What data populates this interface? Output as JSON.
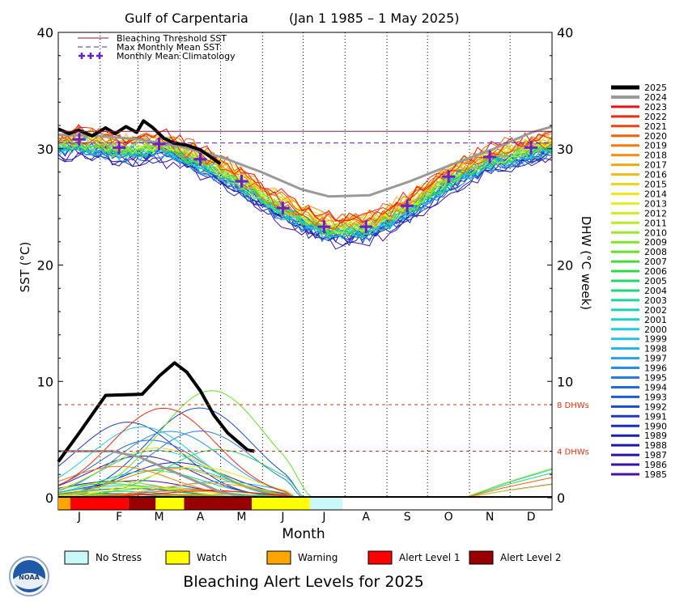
{
  "chart_data": {
    "type": "line",
    "title_region": "Gulf of Carpentaria",
    "title_period": "(Jan 1 1985 – 1 May 2025)",
    "ylabel_left": "SST (°C)",
    "ylabel_right": "DHW (°C week)",
    "xlabel": "Month",
    "ylim": [
      0,
      40
    ],
    "yticks": [
      "0",
      "10",
      "20",
      "30",
      "40"
    ],
    "yticks_right": [
      "0",
      "10",
      "20",
      "30",
      "40"
    ],
    "months": [
      "J",
      "F",
      "M",
      "A",
      "M",
      "J",
      "J",
      "A",
      "S",
      "O",
      "N",
      "D"
    ],
    "bleaching_threshold": 31.5,
    "max_monthly_mean": 30.5,
    "dhw_lines": [
      {
        "value": 8,
        "label": "8 DHWs"
      },
      {
        "value": 4,
        "label": "4 DHWs"
      }
    ],
    "legend_top": [
      {
        "label": "Bleaching Threshold SST",
        "color": "#8b1a3a",
        "style": "solid"
      },
      {
        "label": "Max Monthly Mean SST",
        "color": "#5522cc",
        "style": "dashed"
      },
      {
        "label": "Monthly Mean Climatology",
        "color": "#6a22c8",
        "style": "plus"
      }
    ],
    "climatology": [
      30.8,
      30.1,
      30.4,
      29.1,
      27.2,
      24.9,
      23.3,
      23.3,
      25.1,
      27.6,
      29.3,
      30.1
    ],
    "sst_2025": [
      [
        0,
        31.7
      ],
      [
        8,
        31.3
      ],
      [
        15,
        31.6
      ],
      [
        25,
        31.1
      ],
      [
        35,
        31.8
      ],
      [
        42,
        31.3
      ],
      [
        50,
        31.9
      ],
      [
        58,
        31.4
      ],
      [
        63,
        32.4
      ],
      [
        70,
        31.8
      ],
      [
        78,
        30.9
      ],
      [
        85,
        30.5
      ],
      [
        95,
        30.3
      ],
      [
        105,
        29.9
      ],
      [
        115,
        29.1
      ],
      [
        120,
        28.7
      ]
    ],
    "sst_2024": [
      [
        0,
        31.2
      ],
      [
        30,
        31.1
      ],
      [
        60,
        30.8
      ],
      [
        90,
        30.2
      ],
      [
        120,
        29.3
      ],
      [
        150,
        28.0
      ],
      [
        180,
        26.5
      ],
      [
        200,
        25.9
      ],
      [
        230,
        26.0
      ],
      [
        260,
        27.2
      ],
      [
        290,
        28.6
      ],
      [
        320,
        29.9
      ],
      [
        350,
        31.4
      ],
      [
        365,
        31.9
      ]
    ],
    "dhw_2025": [
      [
        0,
        3.1
      ],
      [
        15,
        5.5
      ],
      [
        35,
        8.8
      ],
      [
        62,
        8.9
      ],
      [
        75,
        10.5
      ],
      [
        86,
        11.6
      ],
      [
        95,
        10.8
      ],
      [
        105,
        9.2
      ],
      [
        115,
        7.1
      ],
      [
        125,
        5.6
      ],
      [
        140,
        4.1
      ],
      [
        145,
        4.0
      ]
    ],
    "dhw_2024": [
      [
        0,
        4.0
      ],
      [
        40,
        4.0
      ],
      [
        60,
        3.5
      ],
      [
        80,
        2.5
      ],
      [
        100,
        1.5
      ],
      [
        120,
        0.5
      ],
      [
        140,
        0.0
      ]
    ],
    "year_legend": [
      {
        "year": "2025",
        "color": "#000000"
      },
      {
        "year": "2024",
        "color": "#999999"
      },
      {
        "year": "2023",
        "color": "#ee1111"
      },
      {
        "year": "2022",
        "color": "#f02a10"
      },
      {
        "year": "2021",
        "color": "#f4420e"
      },
      {
        "year": "2020",
        "color": "#f6600c"
      },
      {
        "year": "2019",
        "color": "#f7780c"
      },
      {
        "year": "2018",
        "color": "#f78f10"
      },
      {
        "year": "2017",
        "color": "#f5a612"
      },
      {
        "year": "2016",
        "color": "#f4bc14"
      },
      {
        "year": "2015",
        "color": "#f2d418"
      },
      {
        "year": "2014",
        "color": "#eee81c"
      },
      {
        "year": "2013",
        "color": "#e2ee20"
      },
      {
        "year": "2012",
        "color": "#cdee24"
      },
      {
        "year": "2011",
        "color": "#b5ec24"
      },
      {
        "year": "2010",
        "color": "#9be824"
      },
      {
        "year": "2009",
        "color": "#80e426"
      },
      {
        "year": "2008",
        "color": "#62e02a"
      },
      {
        "year": "2007",
        "color": "#42dc32"
      },
      {
        "year": "2006",
        "color": "#2cda44"
      },
      {
        "year": "2005",
        "color": "#22d860"
      },
      {
        "year": "2004",
        "color": "#1ed67c"
      },
      {
        "year": "2003",
        "color": "#1ad498"
      },
      {
        "year": "2002",
        "color": "#18d2b2"
      },
      {
        "year": "2001",
        "color": "#18d0cc"
      },
      {
        "year": "2000",
        "color": "#1ccce0"
      },
      {
        "year": "1999",
        "color": "#20c2ec"
      },
      {
        "year": "1998",
        "color": "#22b2f0"
      },
      {
        "year": "1997",
        "color": "#24a0f0"
      },
      {
        "year": "1996",
        "color": "#248eec"
      },
      {
        "year": "1995",
        "color": "#227ce6"
      },
      {
        "year": "1994",
        "color": "#206ade"
      },
      {
        "year": "1993",
        "color": "#1e58d6"
      },
      {
        "year": "1992",
        "color": "#1c48ce"
      },
      {
        "year": "1991",
        "color": "#1a3ac6"
      },
      {
        "year": "1990",
        "color": "#182cbe"
      },
      {
        "year": "1989",
        "color": "#1a20b6"
      },
      {
        "year": "1988",
        "color": "#1e18ae"
      },
      {
        "year": "1987",
        "color": "#2814a8"
      },
      {
        "year": "1986",
        "color": "#3812a6"
      },
      {
        "year": "1985",
        "color": "#4a10a6"
      }
    ],
    "alert_strip": [
      {
        "level": "Warning",
        "days": 9
      },
      {
        "level": "Alert Level 1",
        "days": 43
      },
      {
        "level": "Alert Level 2",
        "days": 20
      },
      {
        "level": "Watch",
        "days": 21
      },
      {
        "level": "Alert Level 2",
        "days": 50
      },
      {
        "level": "Watch",
        "days": 43
      },
      {
        "level": "No Stress",
        "days": 24
      }
    ]
  },
  "status_legend": [
    {
      "label": "No Stress",
      "color": "#c8f8f8"
    },
    {
      "label": "Watch",
      "color": "#ffff00"
    },
    {
      "label": "Warning",
      "color": "#ffa500"
    },
    {
      "label": "Alert Level 1",
      "color": "#ff0000"
    },
    {
      "label": "Alert Level 2",
      "color": "#990000"
    }
  ],
  "footer_title": "Bleaching Alert Levels for 2025",
  "logo_text": "NOAA"
}
